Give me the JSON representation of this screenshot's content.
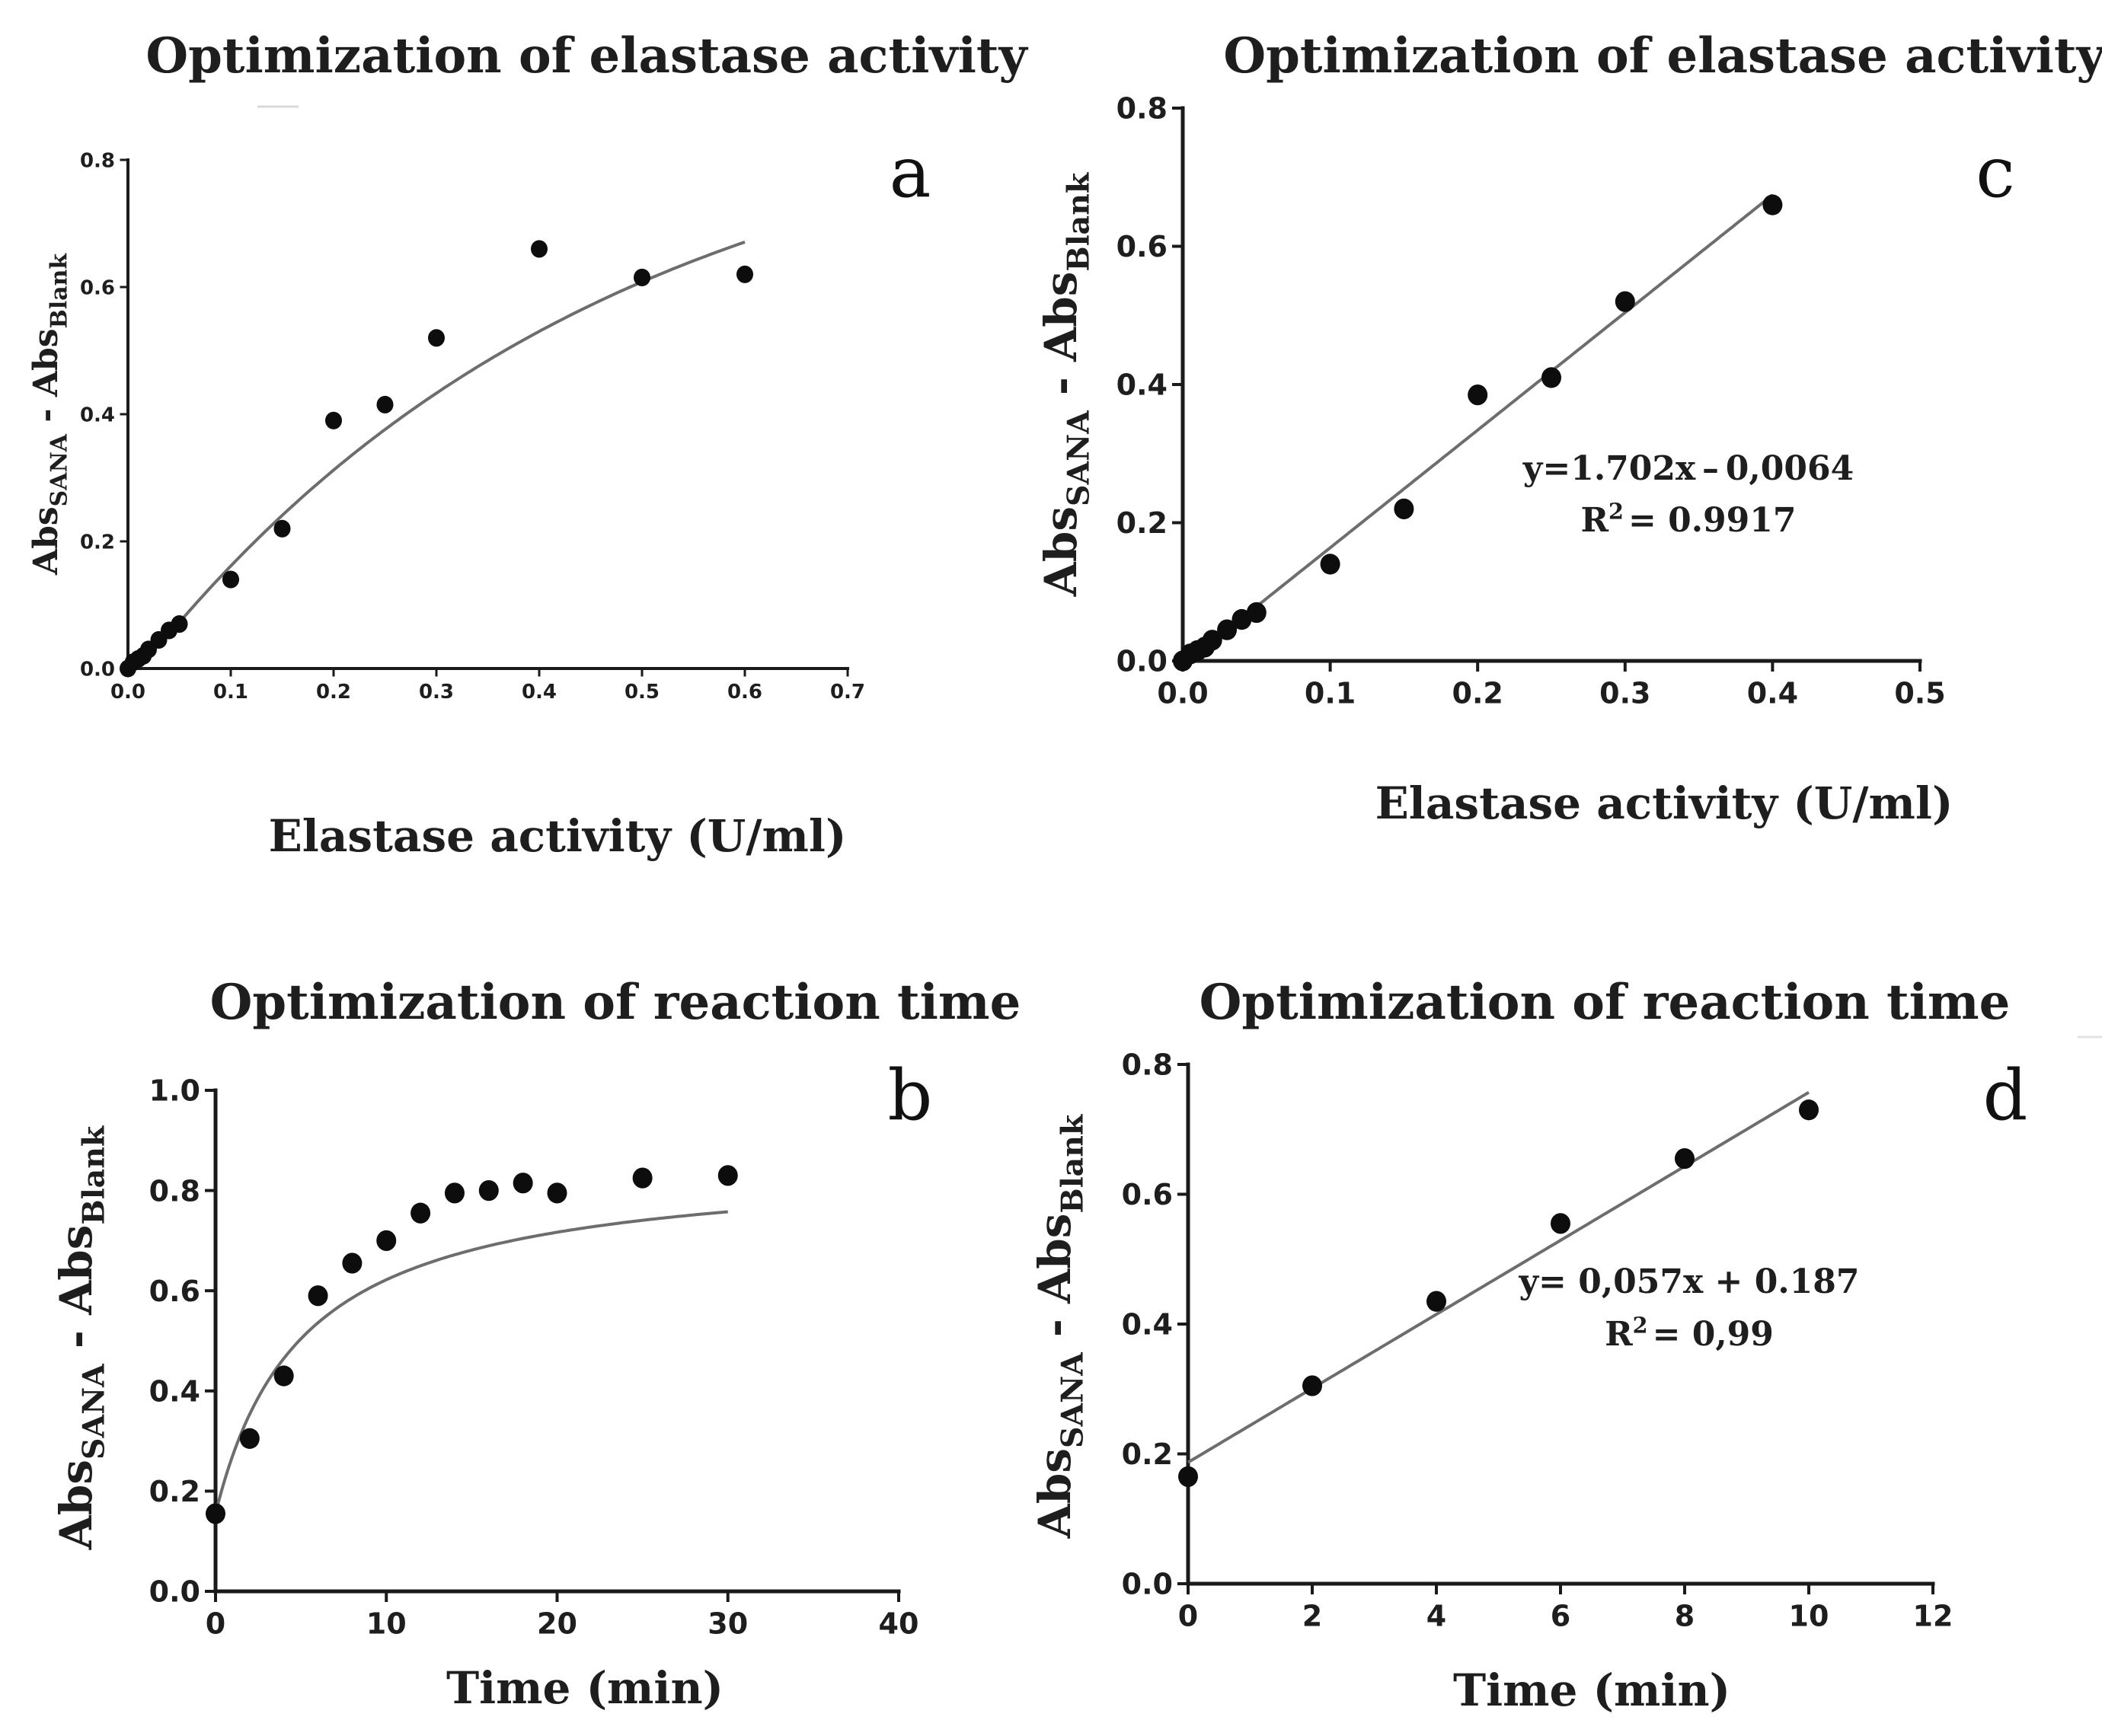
{
  "chart_data": [
    {
      "id": "a",
      "type": "scatter",
      "panel_label": "a",
      "title": "Optimization of elastase activity",
      "xlabel": "Elastase activity (U/ml)",
      "ylabel_main": "Abs",
      "ylabel_sub1": "SANA",
      "ylabel_mid": " - Abs",
      "ylabel_sub2": "Blank",
      "xlim": [
        0,
        0.7
      ],
      "ylim": [
        0,
        0.8
      ],
      "xticks": [
        0.0,
        0.1,
        0.2,
        0.3,
        0.4,
        0.5,
        0.6,
        0.7
      ],
      "yticks": [
        0.0,
        0.2,
        0.4,
        0.6,
        0.8
      ],
      "xtick_labels": [
        "0.0",
        "0.1",
        "0.2",
        "0.3",
        "0.4",
        "0.5",
        "0.6",
        "0.7"
      ],
      "ytick_labels": [
        "0.0",
        "0.2",
        "0.4",
        "0.6",
        "0.8"
      ],
      "x": [
        0,
        0.005,
        0.01,
        0.015,
        0.02,
        0.03,
        0.04,
        0.05,
        0.1,
        0.15,
        0.2,
        0.25,
        0.3,
        0.4,
        0.5,
        0.6
      ],
      "y": [
        0.0,
        0.01,
        0.015,
        0.02,
        0.03,
        0.045,
        0.06,
        0.07,
        0.14,
        0.22,
        0.39,
        0.415,
        0.52,
        0.66,
        0.615,
        0.62
      ],
      "fit": {
        "kind": "piecewise",
        "linear_slope": 1.4,
        "linear_to": 0.045,
        "plateau": 0.925,
        "k": 2.2,
        "x_end": 0.6
      }
    },
    {
      "id": "b",
      "type": "scatter",
      "panel_label": "b",
      "title": "Optimization of reaction time",
      "xlabel": "Time (min)",
      "ylabel_main": "Abs",
      "ylabel_sub1": "SANA",
      "ylabel_mid": " - Abs",
      "ylabel_sub2": "Blank",
      "xlim": [
        0,
        40
      ],
      "ylim": [
        0,
        1.0
      ],
      "xticks": [
        0,
        10,
        20,
        30,
        40
      ],
      "yticks": [
        0.0,
        0.2,
        0.4,
        0.6,
        0.8,
        1.0
      ],
      "xtick_labels": [
        "0",
        "10",
        "20",
        "30",
        "40"
      ],
      "ytick_labels": [
        "0.0",
        "0.2",
        "0.4",
        "0.6",
        "0.8",
        "1.0"
      ],
      "x": [
        0,
        2,
        4,
        6,
        8,
        10,
        12,
        14,
        16,
        18,
        20,
        25,
        30
      ],
      "y": [
        0.155,
        0.305,
        0.43,
        0.59,
        0.655,
        0.7,
        0.755,
        0.795,
        0.8,
        0.815,
        0.795,
        0.825,
        0.83
      ],
      "fit": {
        "kind": "hyperbolic",
        "y0": 0.155,
        "vmax": 0.86,
        "km": 5.1,
        "x_end": 30
      }
    },
    {
      "id": "c",
      "type": "scatter",
      "panel_label": "c",
      "title": "Optimization of elastase activity",
      "xlabel": "Elastase activity (U/ml)",
      "ylabel_main": "Abs",
      "ylabel_sub1": "SANA",
      "ylabel_mid": " - Abs",
      "ylabel_sub2": "Blank",
      "xlim": [
        0,
        0.5
      ],
      "ylim": [
        0,
        0.8
      ],
      "xticks": [
        0.0,
        0.1,
        0.2,
        0.3,
        0.4,
        0.5
      ],
      "yticks": [
        0.0,
        0.2,
        0.4,
        0.6,
        0.8
      ],
      "xtick_labels": [
        "0.0",
        "0.1",
        "0.2",
        "0.3",
        "0.4",
        "0.5"
      ],
      "ytick_labels": [
        "0.0",
        "0.2",
        "0.4",
        "0.6",
        "0.8"
      ],
      "x": [
        0,
        0.005,
        0.01,
        0.015,
        0.02,
        0.03,
        0.04,
        0.05,
        0.1,
        0.15,
        0.2,
        0.25,
        0.3,
        0.4
      ],
      "y": [
        0.0,
        0.01,
        0.015,
        0.02,
        0.03,
        0.045,
        0.06,
        0.07,
        0.14,
        0.22,
        0.385,
        0.41,
        0.52,
        0.66
      ],
      "fit": {
        "kind": "linear",
        "slope": 1.702,
        "intercept": -0.0064,
        "x_start": 0,
        "x_end": 0.4
      },
      "equation": "y=1.702x – 0,0064",
      "r2_label": "R",
      "r2_sup": "2",
      "r2_value": "= 0.9917"
    },
    {
      "id": "d",
      "type": "scatter",
      "panel_label": "d",
      "title": "Optimization of reaction time",
      "xlabel": "Time (min)",
      "ylabel_main": "Abs",
      "ylabel_sub1": "SANA",
      "ylabel_mid": " - Abs",
      "ylabel_sub2": "Blank",
      "xlim": [
        0,
        12
      ],
      "ylim": [
        0,
        0.8
      ],
      "xticks": [
        0,
        2,
        4,
        6,
        8,
        10,
        12
      ],
      "yticks": [
        0.0,
        0.2,
        0.4,
        0.6,
        0.8
      ],
      "xtick_labels": [
        "0",
        "2",
        "4",
        "6",
        "8",
        "10",
        "12"
      ],
      "ytick_labels": [
        "0.0",
        "0.2",
        "0.4",
        "0.6",
        "0.8"
      ],
      "x": [
        0,
        2,
        4,
        6,
        8,
        10
      ],
      "y": [
        0.165,
        0.305,
        0.435,
        0.555,
        0.655,
        0.73
      ],
      "fit": {
        "kind": "linear",
        "slope": 0.057,
        "intercept": 0.187,
        "x_start": 0,
        "x_end": 10
      },
      "equation": "y= 0,057x + 0.187",
      "r2_label": "R",
      "r2_sup": "2",
      "r2_value": "= 0,99"
    }
  ]
}
